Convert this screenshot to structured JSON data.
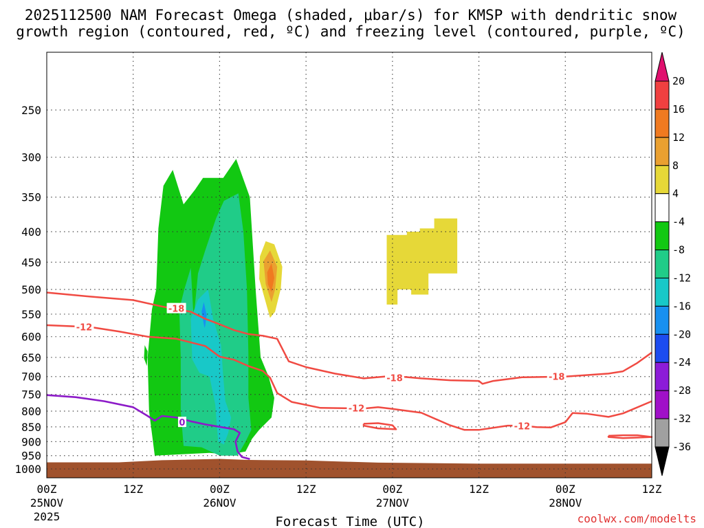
{
  "chart_data": {
    "type": "time-height cross-section",
    "title_line1": "2025112500 NAM Forecast Omega (shaded, μbar/s) for KMSP with dendritic snow",
    "title_line2": "growth region (contoured, red, ºC) and freezing level (contoured, purple, ºC)",
    "xlabel": "Forecast Time (UTC)",
    "credit": "coolwx.com/modelts",
    "x_range_hours": [
      0,
      84
    ],
    "y_range_hpa": [
      200,
      1035
    ],
    "x_ticks": [
      {
        "hour": 0,
        "line1": "00Z",
        "line2": "25NOV",
        "line3": "2025"
      },
      {
        "hour": 12,
        "line1": "12Z",
        "line2": "",
        "line3": ""
      },
      {
        "hour": 24,
        "line1": "00Z",
        "line2": "26NOV",
        "line3": ""
      },
      {
        "hour": 36,
        "line1": "12Z",
        "line2": "",
        "line3": ""
      },
      {
        "hour": 48,
        "line1": "00Z",
        "line2": "27NOV",
        "line3": ""
      },
      {
        "hour": 60,
        "line1": "12Z",
        "line2": "",
        "line3": ""
      },
      {
        "hour": 72,
        "line1": "00Z",
        "line2": "28NOV",
        "line3": ""
      },
      {
        "hour": 84,
        "line1": "12Z",
        "line2": "",
        "line3": ""
      }
    ],
    "y_ticks": [
      250,
      300,
      350,
      400,
      450,
      500,
      550,
      600,
      650,
      700,
      750,
      800,
      850,
      900,
      950,
      1000
    ],
    "colorbar": {
      "labels": [
        "20",
        "16",
        "12",
        "8",
        "4",
        "-4",
        "-8",
        "-12",
        "-16",
        "-20",
        "-24",
        "-28",
        "-32",
        "-36"
      ],
      "bins": [
        {
          "min": 20,
          "max": 99,
          "color": "#e0106e"
        },
        {
          "min": 16,
          "max": 20,
          "color": "#f04040"
        },
        {
          "min": 12,
          "max": 16,
          "color": "#f07a20"
        },
        {
          "min": 8,
          "max": 12,
          "color": "#eaa030"
        },
        {
          "min": 4,
          "max": 8,
          "color": "#e6d838"
        },
        {
          "min": -4,
          "max": 4,
          "color": "#ffffff"
        },
        {
          "min": -8,
          "max": -4,
          "color": "#12c812"
        },
        {
          "min": -12,
          "max": -8,
          "color": "#20cc88"
        },
        {
          "min": -16,
          "max": -12,
          "color": "#18c8c8"
        },
        {
          "min": -20,
          "max": -16,
          "color": "#1890f0"
        },
        {
          "min": -24,
          "max": -20,
          "color": "#1c4cf0"
        },
        {
          "min": -28,
          "max": -24,
          "color": "#8c1cd8"
        },
        {
          "min": -32,
          "max": -28,
          "color": "#a010c8"
        },
        {
          "min": -36,
          "max": -32,
          "color": "#a0a0a0"
        },
        {
          "min": -99,
          "max": -36,
          "color": "#000000"
        }
      ]
    },
    "omega_regions": [
      {
        "label": "-4",
        "color": "#12c812",
        "points": [
          [
            15.0,
            950
          ],
          [
            14.2,
            800
          ],
          [
            14.0,
            650
          ],
          [
            14.6,
            540
          ],
          [
            15.2,
            500
          ],
          [
            15.5,
            395
          ],
          [
            16.2,
            335
          ],
          [
            17.5,
            315
          ],
          [
            19.0,
            360
          ],
          [
            20.6,
            340
          ],
          [
            21.7,
            325
          ],
          [
            23.2,
            325
          ],
          [
            24.5,
            325
          ],
          [
            26.3,
            302
          ],
          [
            28.2,
            350
          ],
          [
            29.0,
            500
          ],
          [
            29.7,
            650
          ],
          [
            30.8,
            700
          ],
          [
            31.6,
            760
          ],
          [
            31.2,
            820
          ],
          [
            29.5,
            860
          ],
          [
            28.5,
            890
          ],
          [
            27.6,
            935
          ],
          [
            25.2,
            946
          ],
          [
            22.6,
            940
          ]
        ]
      },
      {
        "label": "-8",
        "color": "#20cc88",
        "points": [
          [
            19.0,
            915
          ],
          [
            18.6,
            800
          ],
          [
            18.6,
            650
          ],
          [
            18.4,
            540
          ],
          [
            19.1,
            500
          ],
          [
            20.0,
            460
          ],
          [
            20.4,
            560
          ],
          [
            21.0,
            470
          ],
          [
            22.0,
            430
          ],
          [
            23.5,
            380
          ],
          [
            24.6,
            355
          ],
          [
            26.6,
            345
          ],
          [
            27.3,
            400
          ],
          [
            27.8,
            500
          ],
          [
            28.0,
            640
          ],
          [
            28.0,
            760
          ],
          [
            28.4,
            860
          ],
          [
            27.6,
            900
          ],
          [
            26.5,
            950
          ],
          [
            24.0,
            950
          ],
          [
            21.5,
            920
          ]
        ]
      },
      {
        "label": "-12",
        "color": "#18c8c8",
        "points": [
          [
            20.2,
            655
          ],
          [
            20.0,
            560
          ],
          [
            21.0,
            520
          ],
          [
            22.4,
            500
          ],
          [
            23.1,
            560
          ],
          [
            24.2,
            620
          ],
          [
            24.5,
            700
          ],
          [
            24.8,
            770
          ],
          [
            25.6,
            820
          ],
          [
            25.2,
            870
          ],
          [
            24.6,
            910
          ],
          [
            23.8,
            900
          ],
          [
            23.4,
            780
          ],
          [
            22.6,
            700
          ],
          [
            21.2,
            690
          ]
        ]
      },
      {
        "label": "-16",
        "color": "#1890f0",
        "points": [
          [
            21.9,
            580
          ],
          [
            21.5,
            545
          ],
          [
            21.8,
            525
          ],
          [
            22.2,
            552
          ],
          [
            22.0,
            575
          ]
        ]
      },
      {
        "label": "-4",
        "color": "#12c812",
        "points": [
          [
            13.6,
            620
          ],
          [
            14.0,
            635
          ],
          [
            13.9,
            672
          ],
          [
            13.5,
            652
          ]
        ]
      },
      {
        "label": "4",
        "color": "#e6d838",
        "points": [
          [
            29.6,
            440
          ],
          [
            30.4,
            415
          ],
          [
            31.6,
            420
          ],
          [
            32.7,
            458
          ],
          [
            32.5,
            498
          ],
          [
            31.7,
            545
          ],
          [
            31.0,
            558
          ],
          [
            30.3,
            520
          ],
          [
            29.5,
            480
          ]
        ]
      },
      {
        "label": "8",
        "color": "#eaa030",
        "points": [
          [
            30.1,
            448
          ],
          [
            31.0,
            430
          ],
          [
            32.0,
            458
          ],
          [
            31.7,
            500
          ],
          [
            31.2,
            525
          ],
          [
            30.4,
            490
          ]
        ]
      },
      {
        "label": "12",
        "color": "#f07a20",
        "points": [
          [
            30.6,
            468
          ],
          [
            31.2,
            452
          ],
          [
            31.6,
            478
          ],
          [
            31.2,
            505
          ],
          [
            30.7,
            490
          ]
        ]
      },
      {
        "label": "4",
        "color": "#e6d838",
        "points": [
          [
            47.2,
            405
          ],
          [
            50.0,
            405
          ],
          [
            50.0,
            400
          ],
          [
            51.8,
            400
          ],
          [
            51.8,
            395
          ],
          [
            53.8,
            395
          ],
          [
            53.8,
            380
          ],
          [
            57.0,
            380
          ],
          [
            57.0,
            470
          ],
          [
            53.0,
            470
          ],
          [
            53.0,
            510
          ],
          [
            50.6,
            510
          ],
          [
            50.6,
            500
          ],
          [
            48.7,
            500
          ],
          [
            48.7,
            530
          ],
          [
            47.2,
            530
          ]
        ]
      }
    ],
    "ground": {
      "color": "#a0522d",
      "points": [
        [
          0,
          975
        ],
        [
          10,
          975
        ],
        [
          16,
          967
        ],
        [
          24,
          962
        ],
        [
          28,
          966
        ],
        [
          36,
          968
        ],
        [
          46,
          976
        ],
        [
          60,
          980
        ],
        [
          84,
          980
        ]
      ]
    },
    "contours_dgz": {
      "color": "#f04a42",
      "lines": [
        {
          "label": "-18",
          "label_at": [
            18.0,
            538
          ],
          "points": [
            [
              0,
              506
            ],
            [
              6,
              514
            ],
            [
              12,
              521
            ],
            [
              16,
              534
            ],
            [
              20,
              545
            ],
            [
              22,
              560
            ],
            [
              24,
              572
            ],
            [
              26,
              585
            ],
            [
              28,
              594
            ],
            [
              30,
              598
            ],
            [
              32,
              605
            ],
            [
              32.6,
              625
            ],
            [
              33.6,
              660
            ],
            [
              36,
              675
            ],
            [
              40,
              692
            ],
            [
              44,
              705
            ],
            [
              48,
              698
            ],
            [
              52,
              705
            ],
            [
              56,
              710
            ],
            [
              60,
              712
            ],
            [
              60.5,
              720
            ],
            [
              62,
              712
            ],
            [
              66,
              702
            ],
            [
              72,
              700
            ],
            [
              78,
              692
            ],
            [
              80,
              686
            ],
            [
              82,
              664
            ],
            [
              84,
              638
            ]
          ]
        },
        {
          "label": "-12",
          "label_at": [
            5.2,
            578
          ],
          "points": [
            [
              0,
              574
            ],
            [
              6,
              578
            ],
            [
              10,
              588
            ],
            [
              14,
              600
            ],
            [
              18,
              605
            ],
            [
              22,
              622
            ],
            [
              24,
              648
            ],
            [
              26,
              656
            ],
            [
              28,
              672
            ],
            [
              30,
              685
            ],
            [
              31,
              703
            ],
            [
              32,
              746
            ],
            [
              34,
              772
            ],
            [
              38,
              790
            ],
            [
              44,
              792
            ],
            [
              46,
              788
            ],
            [
              48,
              793
            ],
            [
              52,
              805
            ],
            [
              56,
              845
            ],
            [
              58,
              860
            ],
            [
              60,
              860
            ],
            [
              64,
              846
            ],
            [
              66,
              846
            ],
            [
              68,
              851
            ],
            [
              70,
              852
            ],
            [
              72,
              835
            ],
            [
              73,
              806
            ],
            [
              75,
              808
            ],
            [
              78,
              818
            ],
            [
              80,
              807
            ],
            [
              84,
              770
            ]
          ]
        },
        {
          "label": "",
          "label_at": null,
          "points": [
            [
              44,
              840
            ],
            [
              46,
              838
            ],
            [
              48,
              845
            ],
            [
              48.5,
              858
            ],
            [
              46,
              855
            ],
            [
              44,
              846
            ],
            [
              44,
              840
            ]
          ]
        },
        {
          "label": "",
          "label_at": null,
          "points": [
            [
              78,
              880
            ],
            [
              80,
              878
            ],
            [
              82,
              878
            ],
            [
              84,
              884
            ],
            [
              82,
              886
            ],
            [
              80,
              888
            ],
            [
              78,
              884
            ],
            [
              78,
              880
            ]
          ]
        }
      ]
    },
    "contour_freezing": {
      "color": "#8c1ac8",
      "label": "0",
      "label_at": [
        18.8,
        835
      ],
      "points": [
        [
          0,
          752
        ],
        [
          4,
          758
        ],
        [
          8,
          770
        ],
        [
          12,
          788
        ],
        [
          14,
          815
        ],
        [
          15,
          830
        ],
        [
          16,
          815
        ],
        [
          18,
          820
        ],
        [
          20,
          832
        ],
        [
          22,
          842
        ],
        [
          24,
          850
        ],
        [
          26,
          858
        ],
        [
          26.8,
          870
        ],
        [
          26.2,
          900
        ],
        [
          26.5,
          935
        ],
        [
          27.1,
          955
        ],
        [
          28.2,
          963
        ]
      ]
    }
  }
}
